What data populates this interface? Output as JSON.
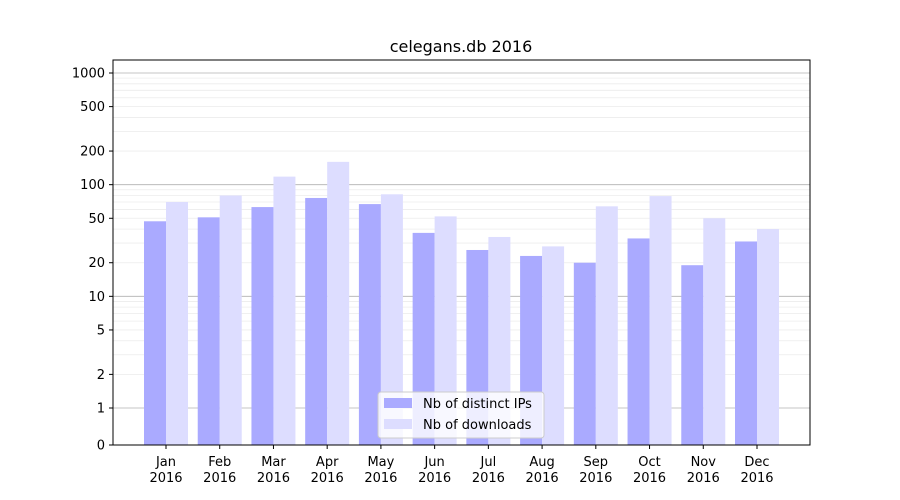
{
  "chart_data": {
    "type": "bar",
    "title": "celegans.db 2016",
    "xlabel": "",
    "ylabel": "",
    "y_scale": "symlog",
    "y_ticks": [
      0,
      1,
      2,
      5,
      10,
      20,
      50,
      100,
      200,
      500,
      1000
    ],
    "y_tick_labels": [
      "0",
      "1",
      "2",
      "5",
      "10",
      "20",
      "50",
      "100",
      "200",
      "500",
      "1000"
    ],
    "grid": true,
    "legend_position": "bottom-center",
    "categories": [
      [
        "Jan",
        "2016"
      ],
      [
        "Feb",
        "2016"
      ],
      [
        "Mar",
        "2016"
      ],
      [
        "Apr",
        "2016"
      ],
      [
        "May",
        "2016"
      ],
      [
        "Jun",
        "2016"
      ],
      [
        "Jul",
        "2016"
      ],
      [
        "Aug",
        "2016"
      ],
      [
        "Sep",
        "2016"
      ],
      [
        "Oct",
        "2016"
      ],
      [
        "Nov",
        "2016"
      ],
      [
        "Dec",
        "2016"
      ]
    ],
    "series": [
      {
        "name": "Nb of distinct IPs",
        "color": "#aaaaff",
        "values": [
          47,
          51,
          63,
          76,
          67,
          37,
          26,
          23,
          20,
          33,
          19,
          31
        ]
      },
      {
        "name": "Nb of downloads",
        "color": "#ddddff",
        "values": [
          70,
          80,
          118,
          160,
          82,
          52,
          34,
          28,
          64,
          79,
          50,
          40
        ]
      }
    ]
  }
}
